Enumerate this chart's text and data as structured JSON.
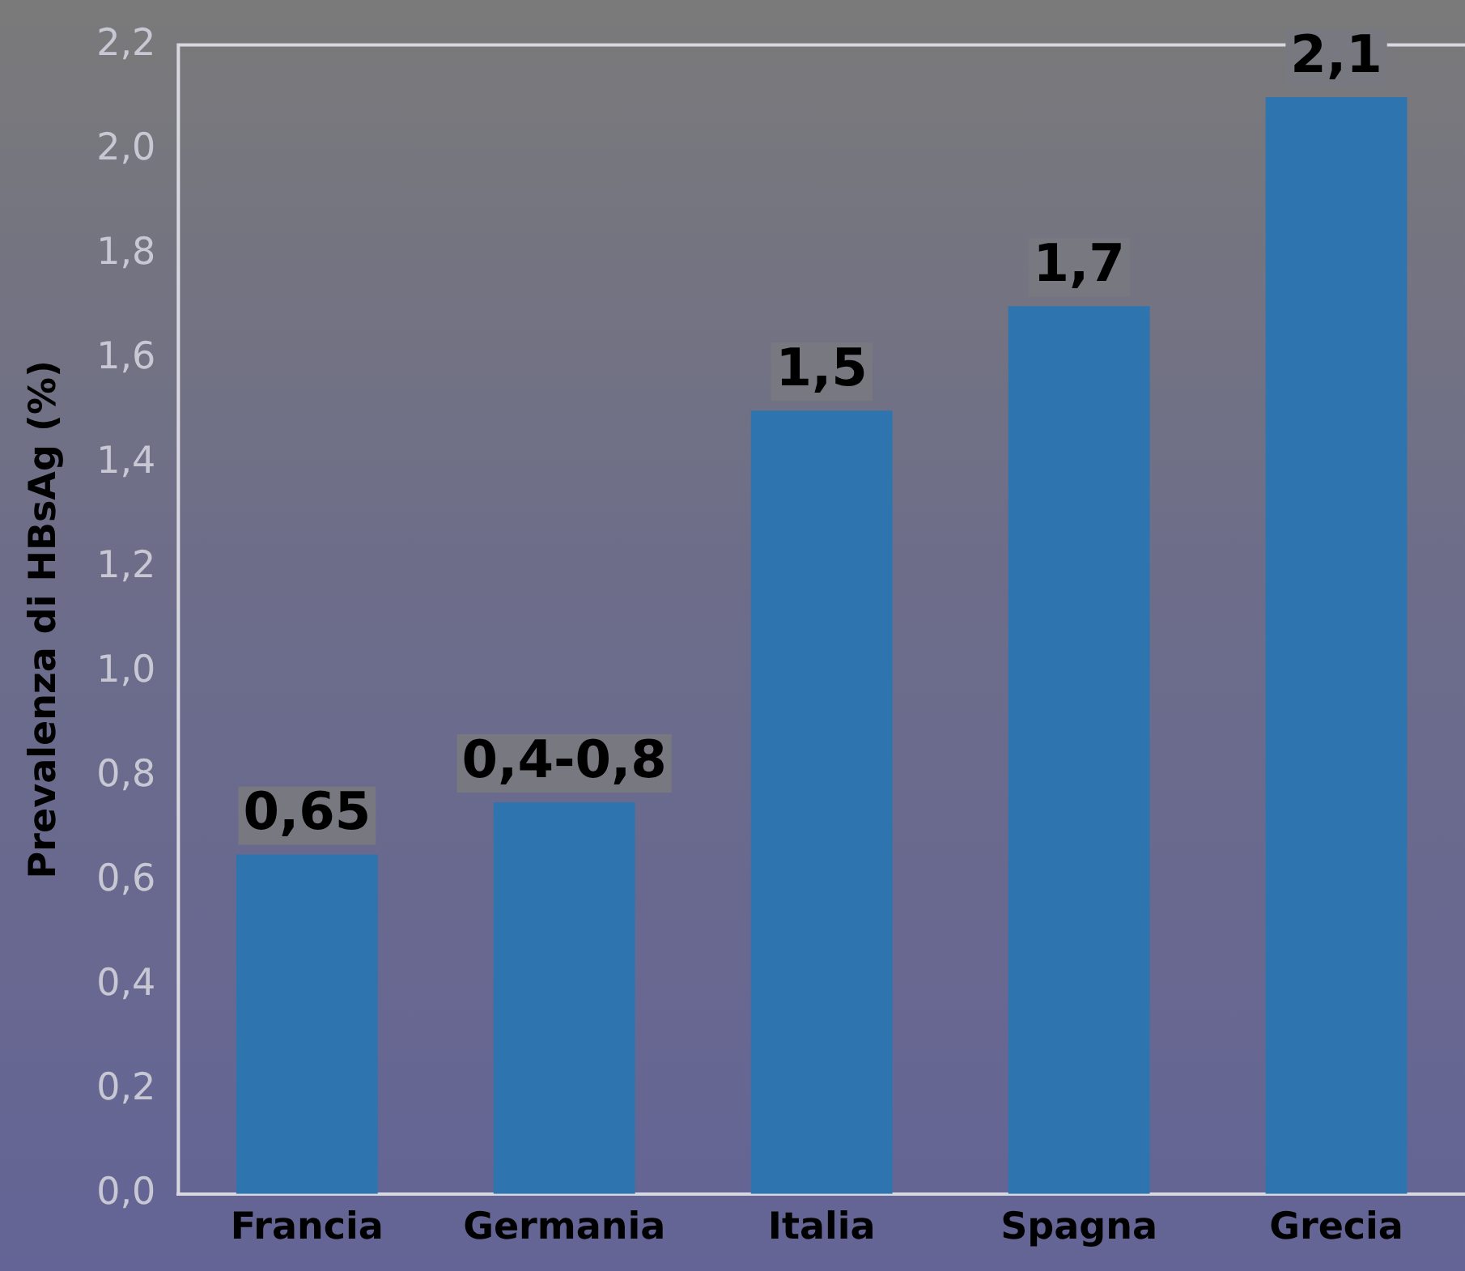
{
  "chart_data": {
    "type": "bar",
    "ylabel": "Prevalenza di HBsAg (%)",
    "categories": [
      "Francia",
      "Germania",
      "Italia",
      "Spagna",
      "Grecia"
    ],
    "values": [
      0.65,
      0.75,
      1.5,
      1.7,
      2.1
    ],
    "value_labels": [
      "0,65",
      "0,4-0,8",
      "1,5",
      "1,7",
      "2,1"
    ],
    "color": "#2e75b0",
    "ylim": [
      0,
      2.2
    ],
    "yticks": [
      {
        "value": 0,
        "label": "0,0"
      },
      {
        "value": 0.2,
        "label": "0,2"
      },
      {
        "value": 0.4,
        "label": "0,4"
      },
      {
        "value": 0.6,
        "label": "0,6"
      },
      {
        "value": 0.8,
        "label": "0,8"
      },
      {
        "value": 1,
        "label": "1,0"
      },
      {
        "value": 1.2,
        "label": "1,2"
      },
      {
        "value": 1.4,
        "label": "1,4"
      },
      {
        "value": 1.6,
        "label": "1,6"
      },
      {
        "value": 1.8,
        "label": "1,8"
      },
      {
        "value": 2,
        "label": "2,0"
      },
      {
        "value": 2.2,
        "label": "2,2"
      }
    ],
    "grid": false,
    "legend": false
  }
}
